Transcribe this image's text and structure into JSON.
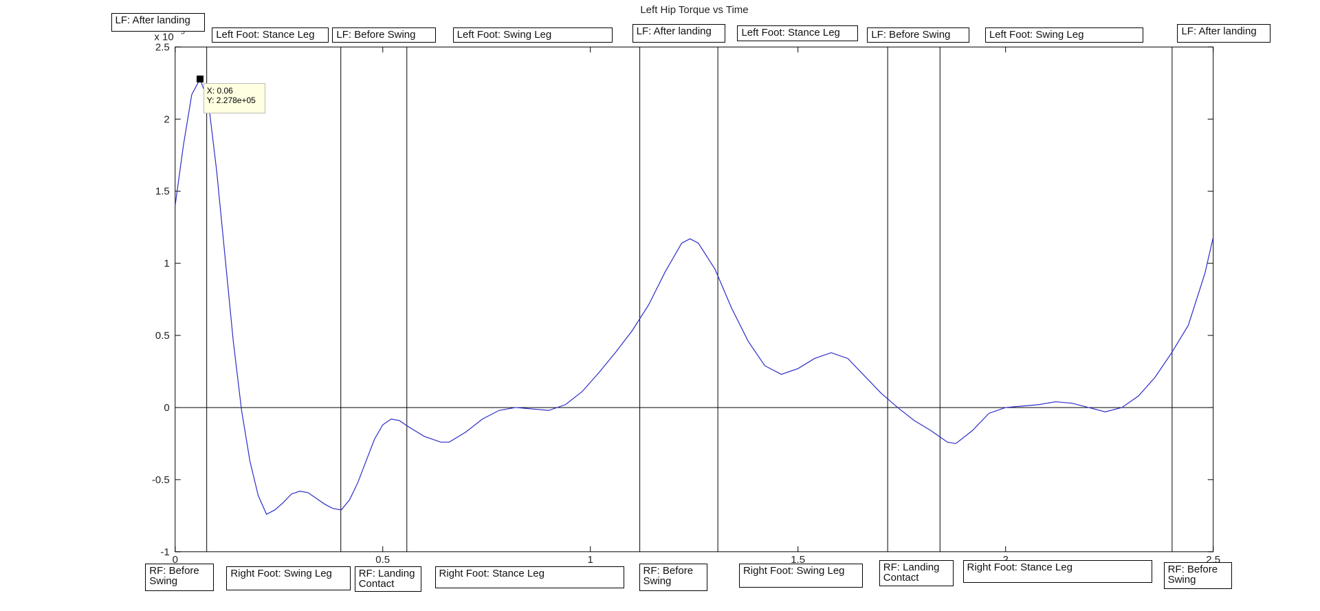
{
  "chart_data": {
    "type": "line",
    "title": "Left Hip Torque vs Time",
    "y_exponent_base": "x 10",
    "y_exponent": "5",
    "x": [
      0,
      0.02,
      0.04,
      0.06,
      0.08,
      0.1,
      0.12,
      0.14,
      0.16,
      0.18,
      0.2,
      0.22,
      0.24,
      0.26,
      0.28,
      0.3,
      0.32,
      0.34,
      0.36,
      0.38,
      0.4,
      0.42,
      0.44,
      0.46,
      0.48,
      0.5,
      0.52,
      0.54,
      0.56,
      0.6,
      0.64,
      0.66,
      0.7,
      0.74,
      0.78,
      0.82,
      0.86,
      0.9,
      0.94,
      0.98,
      1.02,
      1.06,
      1.1,
      1.14,
      1.18,
      1.22,
      1.24,
      1.26,
      1.3,
      1.34,
      1.38,
      1.42,
      1.46,
      1.5,
      1.54,
      1.58,
      1.62,
      1.66,
      1.7,
      1.74,
      1.78,
      1.82,
      1.86,
      1.88,
      1.92,
      1.96,
      2.0,
      2.04,
      2.08,
      2.12,
      2.16,
      2.2,
      2.24,
      2.28,
      2.32,
      2.36,
      2.4,
      2.44,
      2.48,
      2.5
    ],
    "series": [
      {
        "color": "#2b2bc8",
        "values": [
          1.4,
          1.82,
          2.17,
          2.278,
          2.12,
          1.64,
          1.05,
          0.46,
          -0.02,
          -0.37,
          -0.61,
          -0.74,
          -0.71,
          -0.66,
          -0.6,
          -0.58,
          -0.59,
          -0.63,
          -0.67,
          -0.7,
          -0.71,
          -0.64,
          -0.52,
          -0.37,
          -0.22,
          -0.12,
          -0.08,
          -0.09,
          -0.13,
          -0.2,
          -0.24,
          -0.24,
          -0.17,
          -0.08,
          -0.02,
          0,
          -0.01,
          -0.02,
          0.02,
          0.11,
          0.24,
          0.38,
          0.53,
          0.71,
          0.94,
          1.14,
          1.17,
          1.14,
          0.96,
          0.69,
          0.46,
          0.29,
          0.23,
          0.27,
          0.34,
          0.38,
          0.34,
          0.22,
          0.1,
          0,
          -0.09,
          -0.16,
          -0.24,
          -0.25,
          -0.16,
          -0.04,
          0,
          0.01,
          0.02,
          0.04,
          0.03,
          0,
          -0.03,
          0,
          0.08,
          0.21,
          0.38,
          0.57,
          0.93,
          1.18
        ]
      }
    ],
    "xlim": [
      0,
      2.5
    ],
    "xticks": [
      0,
      0.5,
      1,
      1.5,
      2,
      2.5
    ],
    "ylim": [
      -1,
      2.5
    ],
    "yticks": [
      -1,
      -0.5,
      0,
      0.5,
      1,
      1.5,
      2,
      2.5
    ],
    "vlines": [
      0.076,
      0.399,
      0.558,
      1.119,
      1.307,
      1.716,
      1.842,
      2.401
    ],
    "hlines": [
      0
    ],
    "datatip": {
      "x": 0.06,
      "y": 2.278,
      "x_label": "X: 0.06",
      "y_label": "Y: 2.278e+05"
    },
    "top_labels": [
      "LF: After landing",
      "Left Foot: Stance Leg",
      "LF: Before Swing",
      "Left Foot: Swing Leg",
      "LF: After landing",
      "Left Foot: Stance Leg",
      "LF: Before Swing",
      "Left Foot: Swing Leg",
      "LF: After landing"
    ],
    "bottom_labels": [
      "RF: Before Swing",
      "Right Foot: Swing Leg",
      "RF: Landing Contact",
      "Right Foot: Stance Leg",
      "RF: Before Swing",
      "Right Foot: Swing Leg",
      "RF: Landing Contact",
      "Right Foot: Stance Leg",
      "RF: Before Swing"
    ]
  }
}
